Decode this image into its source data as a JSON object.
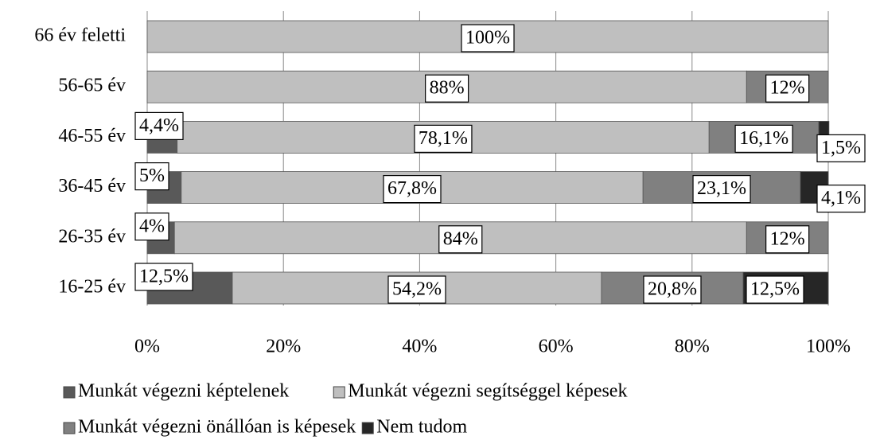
{
  "chart_data": {
    "type": "stacked-bar-horizontal",
    "categories": [
      "66 év feletti",
      "56-65 év",
      "46-55 év",
      "36-45 év",
      "26-35 év",
      "16-25 év"
    ],
    "series": [
      {
        "name": "Munkát végezni képtelenek",
        "color": "#595959",
        "values": [
          0,
          0,
          4.4,
          5,
          4,
          12.5
        ],
        "value_labels": [
          null,
          null,
          "4,4%",
          "5%",
          "4%",
          "12,5%"
        ]
      },
      {
        "name": "Munkát végezni segítséggel képesek",
        "color": "#bfbfbf",
        "values": [
          100,
          88,
          78.1,
          67.8,
          84,
          54.2
        ],
        "value_labels": [
          "100%",
          "88%",
          "78,1%",
          "67,8%",
          "84%",
          "54,2%"
        ]
      },
      {
        "name": "Munkát végezni önállóan is képesek",
        "color": "#808080",
        "values": [
          0,
          12,
          16.1,
          23.1,
          12,
          20.8
        ],
        "value_labels": [
          null,
          "12%",
          "16,1%",
          "23,1%",
          "12%",
          "20,8%"
        ]
      },
      {
        "name": "Nem tudom",
        "color": "#262626",
        "values": [
          0,
          0,
          1.5,
          4.1,
          0,
          12.5
        ],
        "value_labels": [
          null,
          null,
          "1,5%",
          "4,1%",
          null,
          "12,5%"
        ]
      }
    ],
    "xlim": [
      0,
      100
    ],
    "xticks": [
      {
        "value": 0,
        "label": "0%"
      },
      {
        "value": 20,
        "label": "20%"
      },
      {
        "value": 40,
        "label": "40%"
      },
      {
        "value": 60,
        "label": "60%"
      },
      {
        "value": 80,
        "label": "80%"
      },
      {
        "value": 100,
        "label": "100%"
      }
    ],
    "grid": true
  }
}
